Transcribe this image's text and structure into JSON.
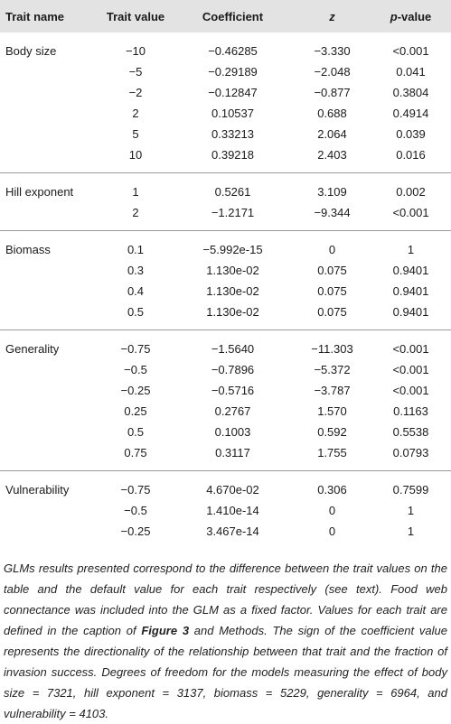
{
  "header": {
    "columns": [
      "Trait name",
      "Trait value",
      "Coefficient",
      "z",
      {
        "italic": "p",
        "text": "-value"
      }
    ]
  },
  "table": {
    "groups": [
      {
        "name": "Body size",
        "rows": [
          [
            "−10",
            "−0.46285",
            "−3.330",
            "<0.001"
          ],
          [
            "−5",
            "−0.29189",
            "−2.048",
            "0.041"
          ],
          [
            "−2",
            "−0.12847",
            "−0.877",
            "0.3804"
          ],
          [
            "2",
            "0.10537",
            "0.688",
            "0.4914"
          ],
          [
            "5",
            "0.33213",
            "2.064",
            "0.039"
          ],
          [
            "10",
            "0.39218",
            "2.403",
            "0.016"
          ]
        ]
      },
      {
        "name": "Hill exponent",
        "rows": [
          [
            "1",
            "0.5261",
            "3.109",
            "0.002"
          ],
          [
            "2",
            "−1.2171",
            "−9.344",
            "<0.001"
          ]
        ]
      },
      {
        "name": "Biomass",
        "rows": [
          [
            "0.1",
            "−5.992e-15",
            "0",
            "1"
          ],
          [
            "0.3",
            "1.130e-02",
            "0.075",
            "0.9401"
          ],
          [
            "0.4",
            "1.130e-02",
            "0.075",
            "0.9401"
          ],
          [
            "0.5",
            "1.130e-02",
            "0.075",
            "0.9401"
          ]
        ]
      },
      {
        "name": "Generality",
        "rows": [
          [
            "−0.75",
            "−1.5640",
            "−11.303",
            "<0.001"
          ],
          [
            "−0.5",
            "−0.7896",
            "−5.372",
            "<0.001"
          ],
          [
            "−0.25",
            "−0.5716",
            "−3.787",
            "<0.001"
          ],
          [
            "0.25",
            "0.2767",
            "1.570",
            "0.1163"
          ],
          [
            "0.5",
            "0.1003",
            "0.592",
            "0.5538"
          ],
          [
            "0.75",
            "0.3117",
            "1.755",
            "0.0793"
          ]
        ]
      },
      {
        "name": "Vulnerability",
        "rows": [
          [
            "−0.75",
            "4.670e-02",
            "0.306",
            "0.7599"
          ],
          [
            "−0.5",
            "1.410e-14",
            "0",
            "1"
          ],
          [
            "−0.25",
            "3.467e-14",
            "0",
            "1"
          ]
        ]
      }
    ]
  },
  "footnote": {
    "parts": [
      "GLMs results presented correspond to the difference between the trait values on the table and the default value for each trait respectively (see text). Food web connectance was included into the GLM as a fixed factor. Values for each trait are defined in the caption of ",
      "Figure 3",
      " and Methods. The sign of the coefficient value represents the directionality of the relationship between that trait and the fraction of invasion success. Degrees of freedom for the models measuring the effect of body size = 7321, hill exponent = 3137, biomass = 5229, generality = 6964, and vulnerability = 4103."
    ]
  }
}
